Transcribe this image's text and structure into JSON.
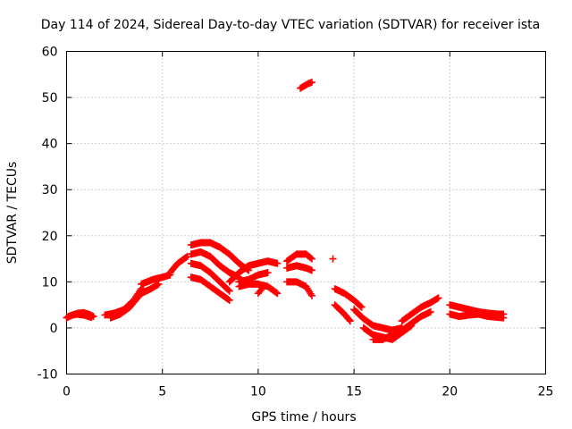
{
  "chart_data": {
    "type": "scatter",
    "title": "Day 114 of 2024, Sidereal Day-to-day VTEC variation (SDTVAR) for receiver ista",
    "xlabel": "GPS time / hours",
    "ylabel": "SDTVAR / TECUs",
    "xlim": [
      0,
      25
    ],
    "ylim": [
      -10,
      60
    ],
    "x_ticks": [
      0,
      5,
      10,
      15,
      20,
      25
    ],
    "y_ticks": [
      -10,
      0,
      10,
      20,
      30,
      40,
      50,
      60
    ],
    "grid": true,
    "marker": "+",
    "series": [
      {
        "name": "SDTVAR",
        "color": "#ff0000",
        "segments": [
          [
            [
              0.0,
              2.2
            ],
            [
              0.3,
              2.8
            ],
            [
              0.6,
              3.2
            ],
            [
              0.9,
              3.3
            ],
            [
              1.2,
              2.9
            ],
            [
              1.4,
              2.5
            ]
          ],
          [
            [
              0.1,
              2.5
            ],
            [
              0.5,
              3.0
            ],
            [
              0.9,
              2.8
            ],
            [
              1.3,
              2.3
            ]
          ],
          [
            [
              2.0,
              2.8
            ],
            [
              2.5,
              3.2
            ],
            [
              3.0,
              4.0
            ],
            [
              3.5,
              6.0
            ],
            [
              3.9,
              8.5
            ]
          ],
          [
            [
              2.3,
              2.2
            ],
            [
              2.8,
              3.0
            ],
            [
              3.3,
              4.5
            ],
            [
              3.8,
              7.0
            ],
            [
              4.0,
              8.5
            ]
          ],
          [
            [
              3.9,
              9.5
            ],
            [
              4.5,
              10.5
            ],
            [
              5.0,
              11.0
            ],
            [
              5.4,
              11.5
            ]
          ],
          [
            [
              3.9,
              7.5
            ],
            [
              4.4,
              8.5
            ],
            [
              4.8,
              9.5
            ]
          ],
          [
            [
              5.4,
              12.0
            ],
            [
              5.8,
              14.0
            ],
            [
              6.3,
              15.5
            ]
          ],
          [
            [
              6.5,
              18.0
            ],
            [
              7.0,
              18.5
            ],
            [
              7.5,
              18.5
            ],
            [
              8.0,
              17.5
            ],
            [
              8.5,
              16.0
            ],
            [
              9.0,
              14.0
            ],
            [
              9.5,
              12.5
            ]
          ],
          [
            [
              6.5,
              16.0
            ],
            [
              7.0,
              16.5
            ],
            [
              7.5,
              15.5
            ],
            [
              8.0,
              13.5
            ],
            [
              8.5,
              12.0
            ],
            [
              9.0,
              11.0
            ]
          ],
          [
            [
              6.5,
              14.0
            ],
            [
              7.0,
              13.5
            ],
            [
              7.5,
              12.0
            ],
            [
              8.0,
              10.0
            ],
            [
              8.5,
              8.0
            ]
          ],
          [
            [
              6.5,
              11.0
            ],
            [
              7.0,
              10.5
            ],
            [
              7.5,
              9.0
            ],
            [
              8.0,
              7.5
            ],
            [
              8.5,
              6.0
            ]
          ],
          [
            [
              8.5,
              10.0
            ],
            [
              9.0,
              12.0
            ],
            [
              9.5,
              13.5
            ],
            [
              10.0,
              14.0
            ],
            [
              10.5,
              14.5
            ],
            [
              11.0,
              14.0
            ]
          ],
          [
            [
              9.0,
              10.0
            ],
            [
              9.5,
              10.5
            ],
            [
              10.0,
              11.5
            ],
            [
              10.5,
              12.0
            ]
          ],
          [
            [
              9.0,
              9.0
            ],
            [
              9.5,
              9.5
            ],
            [
              10.0,
              9.5
            ],
            [
              10.5,
              9.0
            ],
            [
              11.0,
              7.5
            ]
          ],
          [
            [
              10.0,
              7.5
            ],
            [
              10.2,
              8.5
            ]
          ],
          [
            [
              11.5,
              10.0
            ],
            [
              12.0,
              10.0
            ],
            [
              12.5,
              9.0
            ],
            [
              12.8,
              7.0
            ]
          ],
          [
            [
              11.5,
              14.5
            ],
            [
              12.0,
              16.0
            ],
            [
              12.5,
              16.0
            ],
            [
              12.8,
              15.0
            ]
          ],
          [
            [
              11.5,
              13.0
            ],
            [
              12.0,
              13.5
            ],
            [
              12.5,
              13.0
            ],
            [
              12.8,
              12.5
            ]
          ],
          [
            [
              12.2,
              52.0
            ],
            [
              12.4,
              52.5
            ],
            [
              12.6,
              53.0
            ],
            [
              12.8,
              53.3
            ]
          ],
          [
            [
              13.9,
              15.0
            ]
          ],
          [
            [
              14.0,
              8.5
            ],
            [
              14.5,
              7.5
            ],
            [
              15.0,
              6.0
            ],
            [
              15.4,
              4.5
            ]
          ],
          [
            [
              14.0,
              5.0
            ],
            [
              14.5,
              3.0
            ],
            [
              14.8,
              1.5
            ]
          ],
          [
            [
              15.0,
              4.0
            ],
            [
              15.5,
              2.0
            ],
            [
              16.0,
              0.5
            ],
            [
              16.5,
              0.0
            ],
            [
              17.0,
              -0.5
            ],
            [
              17.5,
              0.0
            ]
          ],
          [
            [
              15.5,
              0.0
            ],
            [
              16.0,
              -1.5
            ],
            [
              16.5,
              -2.0
            ],
            [
              17.0,
              -2.5
            ],
            [
              17.5,
              -1.0
            ],
            [
              18.0,
              0.5
            ]
          ],
          [
            [
              16.0,
              -2.5
            ],
            [
              16.5,
              -2.5
            ],
            [
              17.0,
              -1.5
            ],
            [
              17.5,
              -0.5
            ],
            [
              18.0,
              1.0
            ],
            [
              18.5,
              2.5
            ],
            [
              19.0,
              3.5
            ]
          ],
          [
            [
              17.5,
              1.5
            ],
            [
              18.0,
              3.0
            ],
            [
              18.5,
              4.5
            ],
            [
              19.0,
              5.5
            ],
            [
              19.4,
              6.5
            ]
          ],
          [
            [
              20.0,
              5.0
            ],
            [
              20.5,
              4.5
            ],
            [
              21.0,
              4.0
            ],
            [
              21.5,
              3.5
            ],
            [
              22.0,
              3.2
            ],
            [
              22.5,
              3.0
            ],
            [
              22.8,
              3.0
            ]
          ],
          [
            [
              20.0,
              3.0
            ],
            [
              20.5,
              2.5
            ],
            [
              21.0,
              2.8
            ],
            [
              21.5,
              3.0
            ],
            [
              22.0,
              2.5
            ],
            [
              22.8,
              2.2
            ]
          ]
        ]
      }
    ]
  }
}
